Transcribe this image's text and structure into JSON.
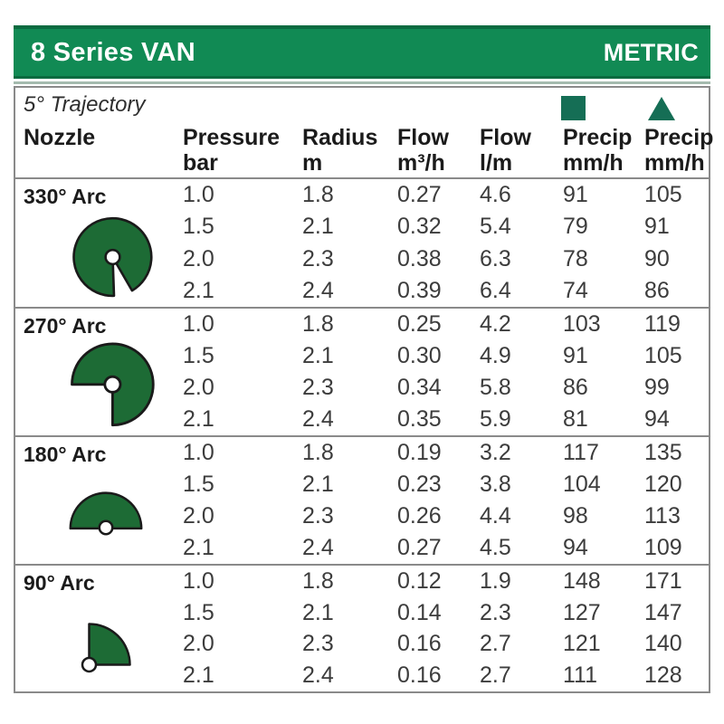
{
  "title_bar": {
    "title": "8 Series VAN",
    "unit_system": "METRIC"
  },
  "table": {
    "trajectory_label": "5° Trajectory",
    "columns": [
      {
        "label": "Nozzle",
        "unit": ""
      },
      {
        "label": "Pressure",
        "unit": "bar"
      },
      {
        "label": "Radius",
        "unit": "m"
      },
      {
        "label": "Flow",
        "unit": "m³/h"
      },
      {
        "label": "Flow",
        "unit": "l/m"
      },
      {
        "label": "Precip",
        "unit": "mm/h"
      },
      {
        "label": "Precip",
        "unit": "mm/h"
      }
    ],
    "legend": {
      "square_icon": "precip-square",
      "triangle_icon": "precip-triangle"
    },
    "groups": [
      {
        "label": "330° Arc",
        "icon": "arc-330",
        "rows": [
          [
            "1.0",
            "1.8",
            "0.27",
            "4.6",
            "91",
            "105"
          ],
          [
            "1.5",
            "2.1",
            "0.32",
            "5.4",
            "79",
            "91"
          ],
          [
            "2.0",
            "2.3",
            "0.38",
            "6.3",
            "78",
            "90"
          ],
          [
            "2.1",
            "2.4",
            "0.39",
            "6.4",
            "74",
            "86"
          ]
        ]
      },
      {
        "label": "270° Arc",
        "icon": "arc-270",
        "rows": [
          [
            "1.0",
            "1.8",
            "0.25",
            "4.2",
            "103",
            "119"
          ],
          [
            "1.5",
            "2.1",
            "0.30",
            "4.9",
            "91",
            "105"
          ],
          [
            "2.0",
            "2.3",
            "0.34",
            "5.8",
            "86",
            "99"
          ],
          [
            "2.1",
            "2.4",
            "0.35",
            "5.9",
            "81",
            "94"
          ]
        ]
      },
      {
        "label": "180° Arc",
        "icon": "arc-180",
        "rows": [
          [
            "1.0",
            "1.8",
            "0.19",
            "3.2",
            "117",
            "135"
          ],
          [
            "1.5",
            "2.1",
            "0.23",
            "3.8",
            "104",
            "120"
          ],
          [
            "2.0",
            "2.3",
            "0.26",
            "4.4",
            "98",
            "113"
          ],
          [
            "2.1",
            "2.4",
            "0.27",
            "4.5",
            "94",
            "109"
          ]
        ]
      },
      {
        "label": "90° Arc",
        "icon": "arc-90",
        "rows": [
          [
            "1.0",
            "1.8",
            "0.12",
            "1.9",
            "148",
            "171"
          ],
          [
            "1.5",
            "2.1",
            "0.14",
            "2.3",
            "127",
            "147"
          ],
          [
            "2.0",
            "2.3",
            "0.16",
            "2.7",
            "121",
            "140"
          ],
          [
            "2.1",
            "2.4",
            "0.16",
            "2.7",
            "111",
            "128"
          ]
        ]
      }
    ]
  },
  "colors": {
    "header_bar_green": "#118a54",
    "header_bar_edge_green": "#0a6b40",
    "arc_icon_green": "#1d6b35",
    "legend_green": "#156e55",
    "table_border_gray": "#8a8a8a"
  }
}
